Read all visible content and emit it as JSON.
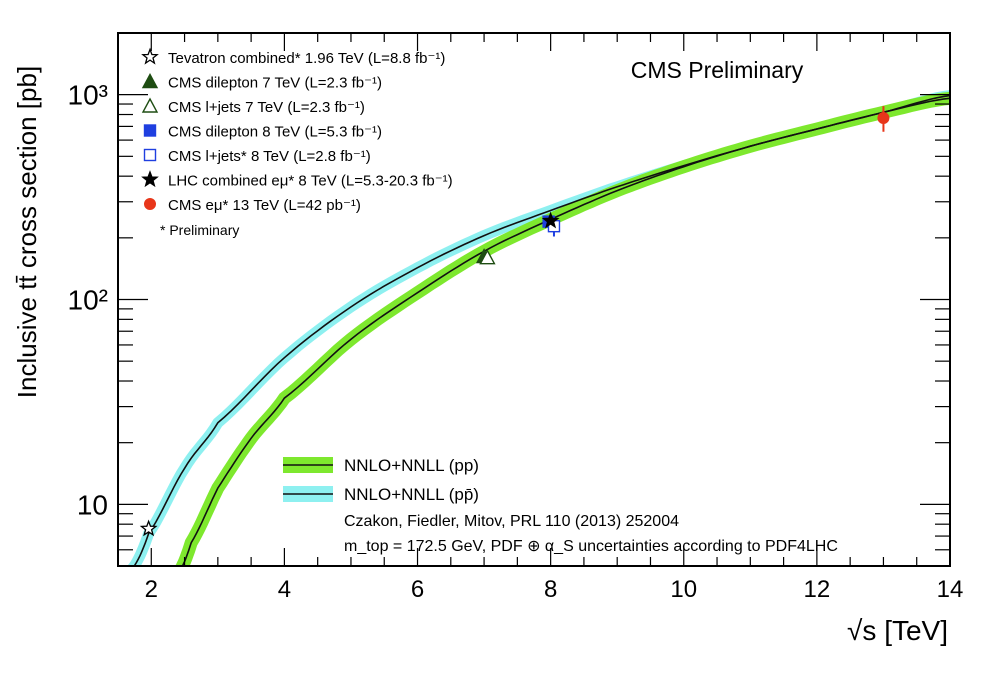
{
  "chart_data": {
    "type": "line",
    "title": "CMS Preliminary",
    "xlabel": "√s [TeV]",
    "ylabel": "Inclusive tt̄ cross section [pb]",
    "x_scale": "linear",
    "y_scale": "log",
    "xlim": [
      1.5,
      14
    ],
    "ylim": [
      5,
      2000
    ],
    "x_ticks": [
      2,
      4,
      6,
      8,
      10,
      12,
      14
    ],
    "y_ticks": [
      "10",
      "10²",
      "10³"
    ],
    "grid": false,
    "series": [
      {
        "name": "NNLO+NNLL (pp)",
        "color": "#111111",
        "band_color": "#7ee82e",
        "x": [
          2.4,
          2.6,
          3.0,
          3.5,
          4.0,
          5.0,
          6.0,
          7.0,
          8.0,
          9.0,
          10.0,
          11.0,
          12.0,
          13.0,
          14.0
        ],
        "y": [
          4.6,
          6.5,
          12,
          21,
          33,
          64,
          108,
          172,
          246,
          340,
          445,
          560,
          680,
          820,
          960
        ]
      },
      {
        "name": "NNLO+NNLL (pp̄)",
        "color": "#111111",
        "band_color": "#8ef0f0",
        "x": [
          1.7,
          1.96,
          2.5,
          3.0,
          4.0,
          5.0,
          6.0,
          7.0,
          8.0,
          9.0,
          10.0,
          11.0,
          12.0,
          13.0,
          14.0
        ],
        "y": [
          4.8,
          7.2,
          15,
          25,
          52,
          92,
          143,
          205,
          272,
          355,
          450,
          560,
          680,
          820,
          990
        ]
      }
    ],
    "measurements": [
      {
        "label": "Tevatron combined* 1.96 TeV (L=8.8 fb⁻¹)",
        "marker": "open-star",
        "color": "#000000",
        "x": 1.96,
        "y": 7.6,
        "err": 0.4
      },
      {
        "label": "CMS dilepton 7 TeV (L=2.3 fb⁻¹)",
        "marker": "filled-triangle",
        "color": "#1e4d12",
        "x": 7.0,
        "y": 162,
        "err": 8
      },
      {
        "label": "CMS l+jets 7 TeV (L=2.3 fb⁻¹)",
        "marker": "open-triangle",
        "color": "#1e4d12",
        "x": 7.05,
        "y": 160,
        "err": 9
      },
      {
        "label": "CMS dilepton 8 TeV (L=5.3 fb⁻¹)",
        "marker": "filled-square",
        "color": "#1f3fe0",
        "x": 7.97,
        "y": 240,
        "err": 10
      },
      {
        "label": "CMS l+jets* 8 TeV (L=2.8 fb⁻¹)",
        "marker": "open-square",
        "color": "#1f3fe0",
        "x": 8.05,
        "y": 228,
        "err": 25
      },
      {
        "label": "LHC combined eμ* 8 TeV (L=5.3-20.3 fb⁻¹)",
        "marker": "filled-star",
        "color": "#000000",
        "x": 8.0,
        "y": 242,
        "err": 7
      },
      {
        "label": "CMS eμ* 13 TeV (L=42 pb⁻¹)",
        "marker": "filled-circle",
        "color": "#e8361a",
        "x": 13.0,
        "y": 769,
        "err": 110
      }
    ],
    "legend_placement": "top-left",
    "annotations": [
      "* Preliminary",
      "Czakon, Fiedler, Mitov, PRL 110 (2013) 252004",
      "m_top = 172.5 GeV, PDF ⊕ α_S uncertainties according to PDF4LHC"
    ]
  }
}
